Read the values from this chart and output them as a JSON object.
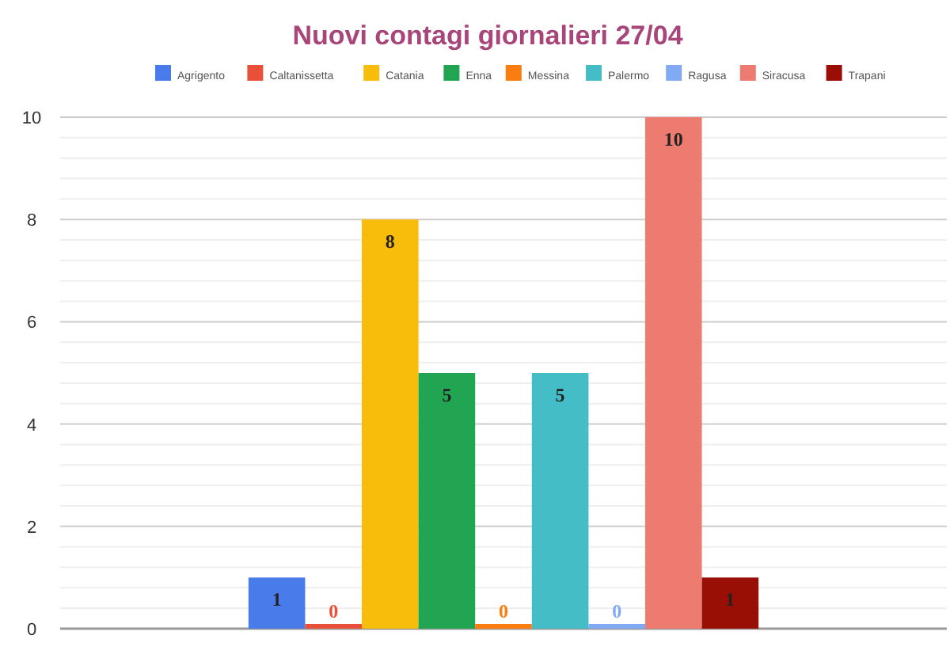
{
  "chart_data": {
    "type": "bar",
    "title": "Nuovi contagi giornalieri 27/04",
    "categories": [
      null
    ],
    "series": [
      {
        "name": "Agrigento",
        "color": "#4a7bea",
        "values": [
          1
        ]
      },
      {
        "name": "Caltanissetta",
        "color": "#e8503a",
        "values": [
          0
        ]
      },
      {
        "name": "Catania",
        "color": "#f8bc0b",
        "values": [
          8
        ]
      },
      {
        "name": "Enna",
        "color": "#22a553",
        "values": [
          5
        ]
      },
      {
        "name": "Messina",
        "color": "#fb7d0f",
        "values": [
          0
        ]
      },
      {
        "name": "Palermo",
        "color": "#44bdc6",
        "values": [
          5
        ]
      },
      {
        "name": "Ragusa",
        "color": "#82a9f4",
        "values": [
          0
        ]
      },
      {
        "name": "Siracusa",
        "color": "#ee7b6f",
        "values": [
          10
        ]
      },
      {
        "name": "Trapani",
        "color": "#990f05",
        "values": [
          1
        ]
      }
    ],
    "ylim": [
      0,
      10
    ],
    "yticks": [
      0,
      {
        "value": 0.4,
        "label": null
      },
      {
        "value": 0.8,
        "label": null
      },
      {
        "value": 1.2,
        "label": null
      },
      {
        "value": 1.6,
        "label": null
      },
      2,
      {
        "value": 2.4,
        "label": null
      },
      {
        "value": 2.8,
        "label": null
      },
      {
        "value": 3.2,
        "label": null
      },
      {
        "value": 3.6,
        "label": null
      },
      4,
      {
        "value": 4.4,
        "label": null
      },
      {
        "value": 4.8,
        "label": null
      },
      {
        "value": 5.2,
        "label": null
      },
      {
        "value": 5.6,
        "label": null
      },
      6,
      {
        "value": 6.4,
        "label": null
      },
      {
        "value": 6.8,
        "label": null
      },
      {
        "value": 7.2,
        "label": null
      },
      {
        "value": 7.6,
        "label": null
      },
      8,
      {
        "value": 8.4,
        "label": null
      },
      {
        "value": 8.8,
        "label": null
      },
      {
        "value": 9.2,
        "label": null
      },
      {
        "value": 9.6,
        "label": null
      },
      10
    ],
    "grid": "y",
    "legend": "top",
    "data_labels": true
  }
}
